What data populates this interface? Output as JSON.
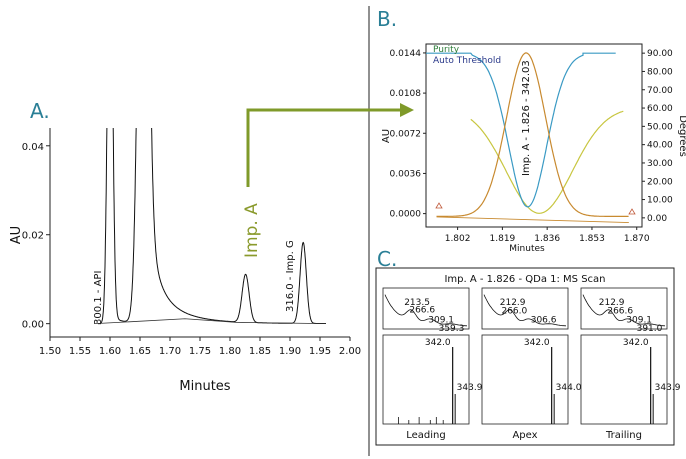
{
  "colors": {
    "panel_letter": "#2a7f96",
    "arrow": "#7f9a2a",
    "imp_label": "#8a9a2c",
    "purity": "#c88a30",
    "threshold": "#c8c640",
    "blue_curve": "#3a9ac4",
    "legend_purity": "#2e7d3a",
    "legend_threshold": "#2b3a8a"
  },
  "panels": {
    "a": {
      "letter": "A."
    },
    "b": {
      "letter": "B."
    },
    "c": {
      "letter": "C."
    }
  },
  "chart_data": [
    {
      "type": "line",
      "panel": "A",
      "xlabel": "Minutes",
      "ylabel": "AU",
      "xlim": [
        1.5,
        2.0
      ],
      "ylim": [
        -0.003,
        0.044
      ],
      "xticks": [
        "1.50",
        "1.55",
        "1.60",
        "1.65",
        "1.70",
        "1.75",
        "1.80",
        "1.85",
        "1.90",
        "1.95",
        "2.00"
      ],
      "yticks": [
        "0.00",
        "0.02",
        "0.04"
      ],
      "peaks": [
        {
          "label": "300.1 - API",
          "x": 1.59
        },
        {
          "label": "Imp. A",
          "x": 1.826,
          "height": 0.0108
        },
        {
          "label": "316.0 - Imp. G",
          "x": 1.922,
          "height": 0.0182
        }
      ]
    },
    {
      "type": "line",
      "panel": "B",
      "xlabel": "Minutes",
      "ylabel": "AU",
      "y2label": "Degrees",
      "xlim": [
        1.79,
        1.872
      ],
      "ylim": [
        -0.0012,
        0.0152
      ],
      "y2lim": [
        -5,
        95
      ],
      "xticks": [
        "1.802",
        "1.819",
        "1.836",
        "1.853",
        "1.870"
      ],
      "yticks": [
        "0.0000",
        "0.0036",
        "0.0072",
        "0.0108",
        "0.0144"
      ],
      "y2ticks": [
        "0.00",
        "10.00",
        "20.00",
        "30.00",
        "40.00",
        "50.00",
        "60.00",
        "70.00",
        "80.00",
        "90.00"
      ],
      "legend": [
        "Purity",
        "Auto Threshold"
      ],
      "peak_label": "Imp. A - 1.826 - 342.03",
      "peak": {
        "x": 1.828,
        "height": 0.0144
      }
    },
    {
      "type": "bar",
      "panel": "C",
      "title": "Imp. A - 1.826 - QDa 1: MS Scan",
      "columns": [
        {
          "label": "Leading",
          "uv_peaks": [
            "213.5",
            "266.6",
            "309.1",
            "359.3"
          ],
          "ms_peaks": [
            "342.0",
            "343.9"
          ]
        },
        {
          "label": "Apex",
          "uv_peaks": [
            "212.9",
            "266.0",
            "306.6"
          ],
          "ms_peaks": [
            "342.0",
            "344.0"
          ]
        },
        {
          "label": "Trailing",
          "uv_peaks": [
            "212.9",
            "266.6",
            "309.1",
            "391.0"
          ],
          "ms_peaks": [
            "342.0",
            "343.9"
          ]
        }
      ]
    }
  ]
}
